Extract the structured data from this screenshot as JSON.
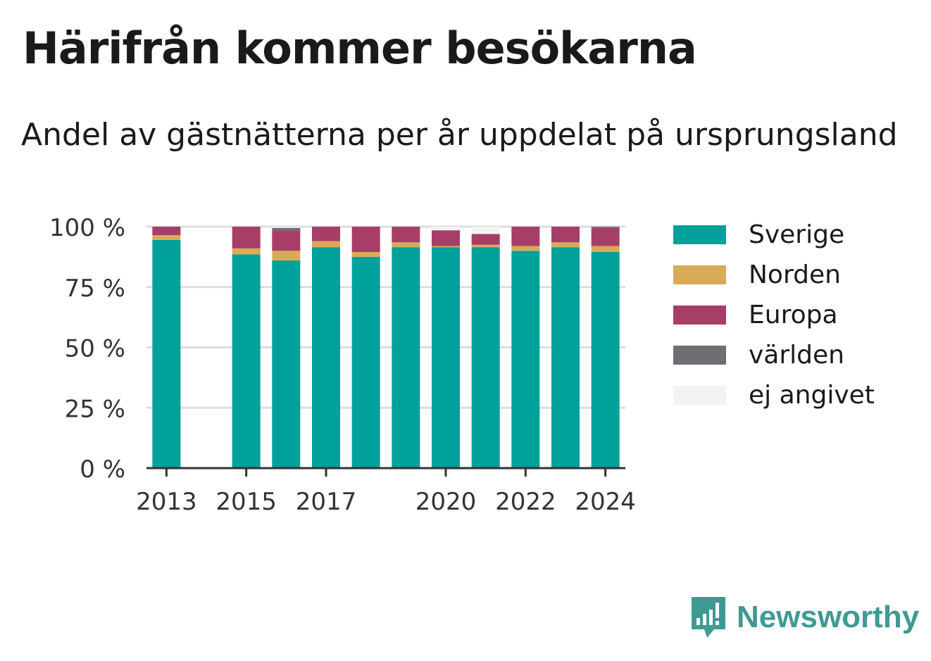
{
  "title": "Härifrån kommer besökarna",
  "subtitle": "Andel av gästnätterna per år uppdelat på ursprungsland",
  "brand": {
    "name": "Newsworthy",
    "color": "#3f9a94",
    "icon": "newsworthy-logo-icon"
  },
  "chart_data": {
    "type": "bar",
    "stacked": true,
    "x": [
      2013,
      2015,
      2016,
      2017,
      2018,
      2019,
      2020,
      2021,
      2022,
      2023,
      2024
    ],
    "x_ticks": [
      "2013",
      "2015",
      "2017",
      "2020",
      "2022",
      "2024"
    ],
    "y_ticks": [
      "0 %",
      "25 %",
      "50 %",
      "75 %",
      "100 %"
    ],
    "ylim": [
      0,
      100
    ],
    "xlim": [
      2012.5,
      2024.5
    ],
    "grid": true,
    "legend_position": "right",
    "series": [
      {
        "name": "Sverige",
        "color": "#00a19a",
        "values": [
          94.5,
          88.5,
          86,
          91.5,
          87.5,
          91.5,
          91.5,
          91.5,
          90,
          91.5,
          89.5
        ]
      },
      {
        "name": "Norden",
        "color": "#d9ab56",
        "values": [
          2,
          2.5,
          4,
          2.5,
          2,
          2,
          0.5,
          1,
          2,
          2,
          2.5
        ]
      },
      {
        "name": "Europa",
        "color": "#a63e68",
        "values": [
          3.5,
          9,
          8.5,
          6,
          10.5,
          6.5,
          6.5,
          4.5,
          8,
          6.5,
          7.5
        ]
      },
      {
        "name": "världen",
        "color": "#6e6e73",
        "values": [
          0,
          0,
          1,
          0,
          0,
          0,
          0,
          0,
          0,
          0,
          0.5
        ]
      },
      {
        "name": "ej angivet",
        "color": "#f3f3f2",
        "values": [
          0,
          0,
          0.5,
          0,
          0,
          0,
          1.5,
          3,
          0,
          0,
          0
        ]
      }
    ]
  }
}
